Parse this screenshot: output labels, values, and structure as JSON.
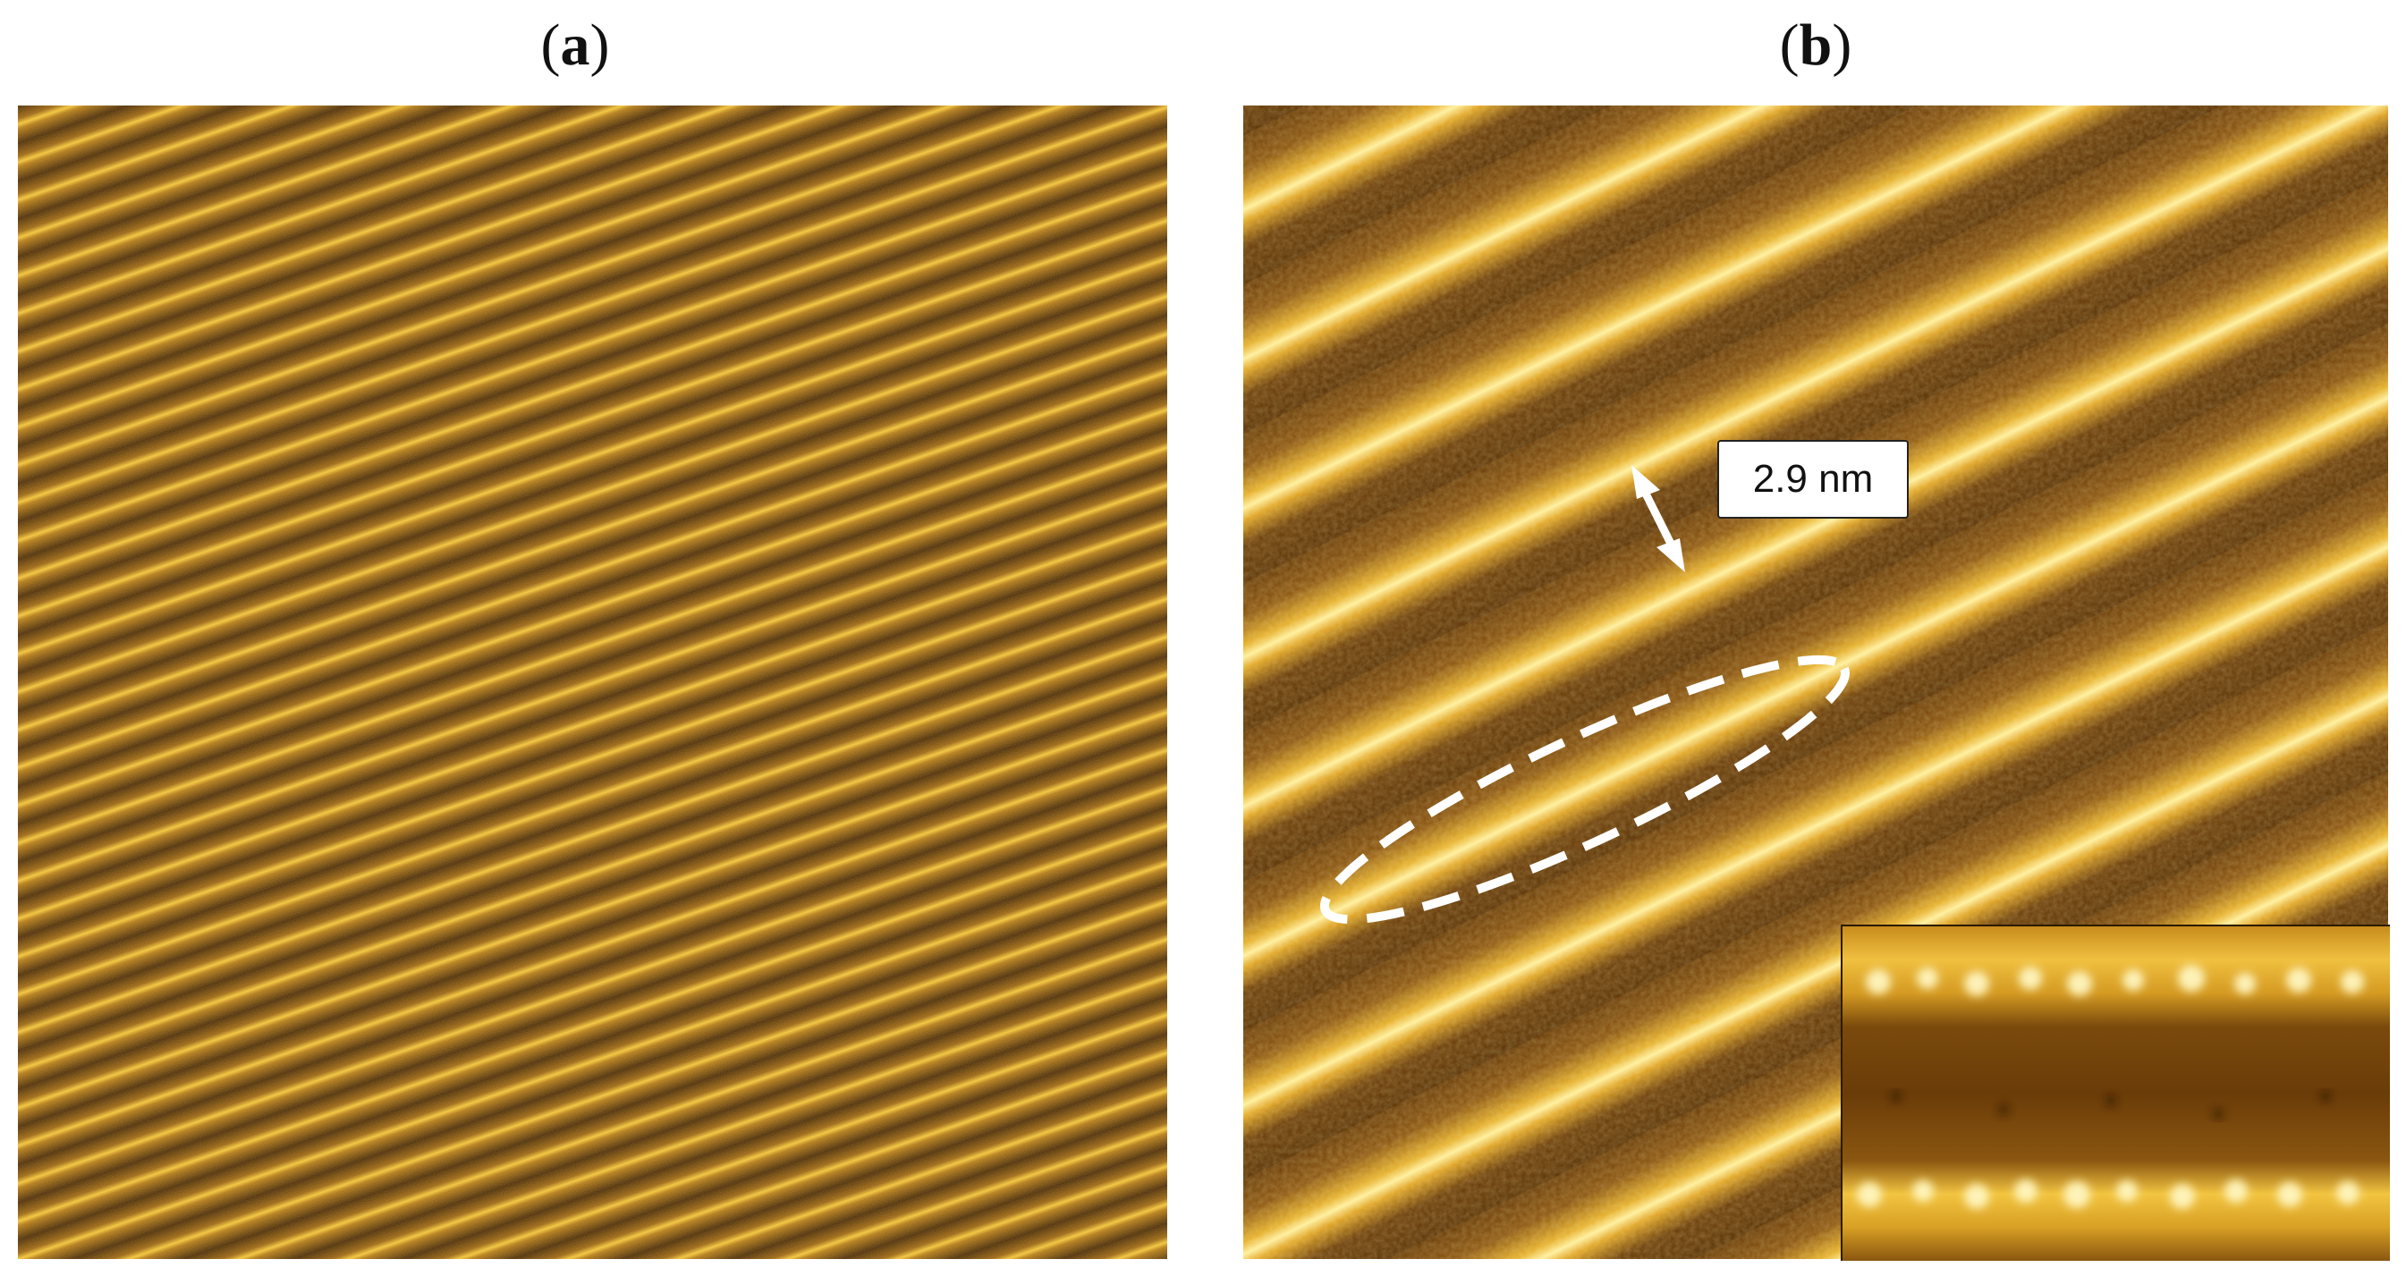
{
  "labels": {
    "panel_a": "a",
    "panel_b": "b",
    "measurement": "2.9 nm"
  },
  "colors": {
    "substrate_dark": "#4a2a06",
    "substrate_mid": "#8a5a10",
    "stripe_bright": "#f2c43a",
    "stripe_highlight": "#fff2b0",
    "annotation": "#ffffff"
  },
  "icons": {
    "measurement_arrow": "double-headed-arrow-icon",
    "highlight_region": "dashed-ellipse-icon"
  }
}
